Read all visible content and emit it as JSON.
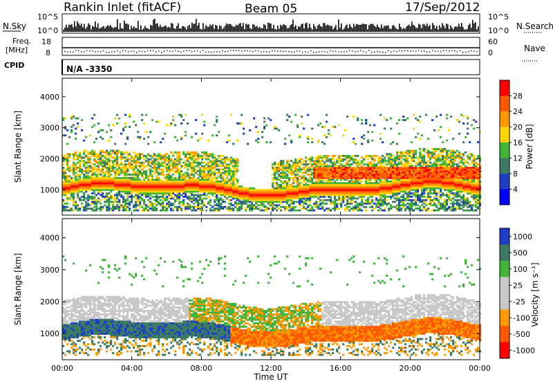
{
  "header": {
    "station": "Rankin Inlet (fitACF)",
    "beam": "Beam 05",
    "date": "17/Sep/2012"
  },
  "noise_panel": {
    "left_label": "N.Sky",
    "right_label": "N.Search",
    "left_ticks": [
      "10^5",
      "10^0"
    ],
    "right_ticks": [
      "10^5",
      "10^0"
    ]
  },
  "freq_panel": {
    "left_label_1": "Freq.",
    "left_label_2": "[MHz]",
    "right_label": "Nave",
    "left_ticks": [
      "18",
      "8"
    ],
    "right_ticks": [
      "60",
      "0"
    ],
    "cpid_label": "CPID",
    "cpid_value": "N/A -3350"
  },
  "colors": {
    "power": [
      "#0000ff",
      "#1e3cc8",
      "#3c7a64",
      "#41b43c",
      "#ffd400",
      "#ff9900",
      "#ff5a00",
      "#ff0000"
    ],
    "velocity": [
      "#ff0000",
      "#ff5a00",
      "#ff9900",
      "#c8c8c8",
      "#c8c8c8",
      "#41b43c",
      "#3c7a64",
      "#1e3cc8"
    ]
  },
  "chart_data": [
    {
      "type": "heatmap",
      "name": "power-panel",
      "ylabel": "Slant Range [km]",
      "ylim": [
        180,
        4600
      ],
      "yticks": [
        "1000",
        "2000",
        "3000",
        "4000"
      ],
      "colorbar_label": "Power [dB]",
      "colorbar_ticks": [
        "4",
        "8",
        "12",
        "16",
        "20",
        "24",
        "28"
      ],
      "x_ticks": [
        "00:00",
        "04:00",
        "08:00",
        "12:00",
        "16:00",
        "20:00",
        "00:00"
      ]
    },
    {
      "type": "heatmap",
      "name": "velocity-panel",
      "ylabel": "Slant Range [km]",
      "ylim": [
        180,
        4600
      ],
      "yticks": [
        "1000",
        "2000",
        "3000",
        "4000"
      ],
      "colorbar_label": "Velocity [m s⁻¹]",
      "colorbar_ticks": [
        "1000",
        "500",
        "100",
        "25",
        "-25",
        "-100",
        "-500",
        "-1000"
      ],
      "x_ticks": [
        "00:00",
        "04:00",
        "08:00",
        "12:00",
        "16:00",
        "20:00",
        "00:00"
      ],
      "xlabel": "Time UT"
    }
  ]
}
